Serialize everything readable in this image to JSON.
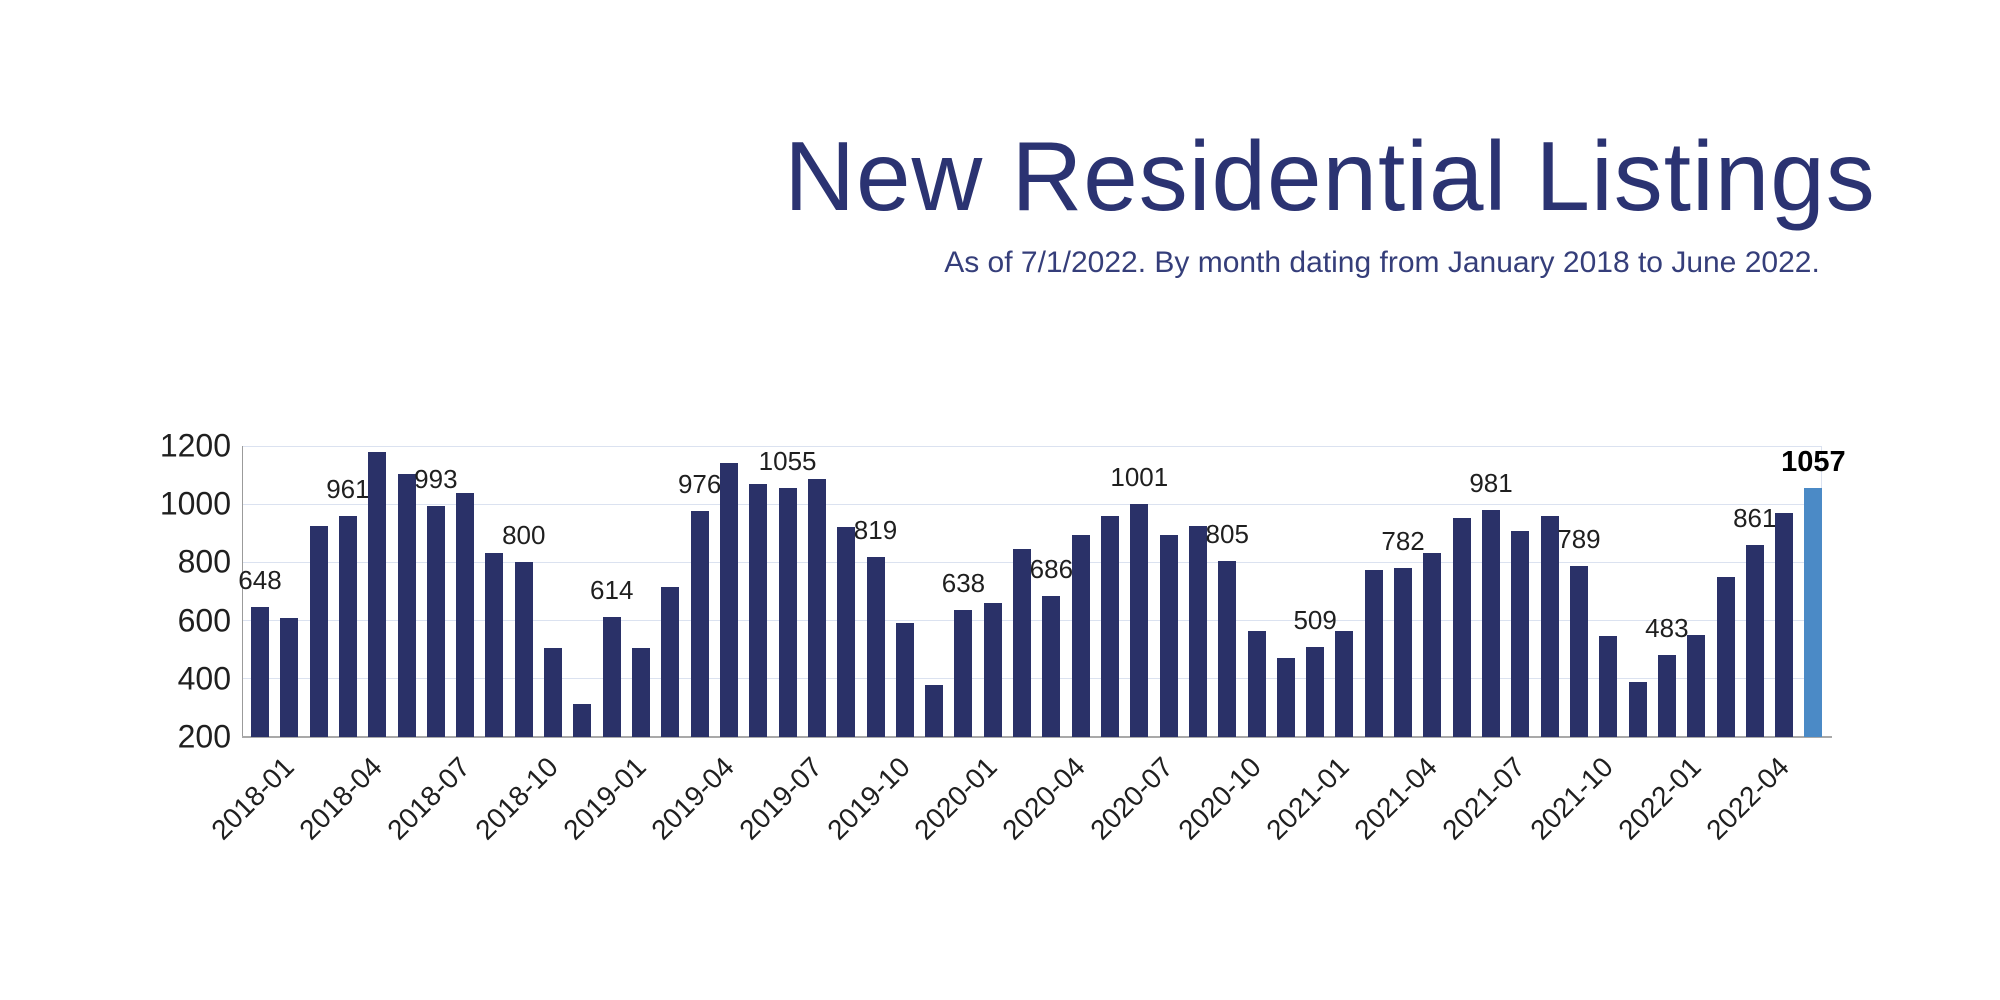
{
  "header": {
    "title": "New Residential Listings",
    "subtitle": "As of 7/1/2022. By month dating from January 2018 to June 2022."
  },
  "colors": {
    "title": "#2b3372",
    "subtitle": "#353e7a",
    "bar": "#2a3168",
    "bar_highlight": "#4b8ac6",
    "gridline": "#dbe2f0",
    "axis_line": "#9b9b9b",
    "baseline": "#a9a9a9",
    "tick_text": "#1f1f1f",
    "data_label_text": "#1f1f1f",
    "final_label_text": "#000000"
  },
  "chart_data": {
    "type": "bar",
    "title": "New Residential Listings",
    "subtitle": "As of 7/1/2022. By month dating from January 2018 to June 2022.",
    "x": [
      "2018-01",
      "2018-02",
      "2018-03",
      "2018-04",
      "2018-05",
      "2018-06",
      "2018-07",
      "2018-08",
      "2018-09",
      "2018-10",
      "2018-11",
      "2018-12",
      "2019-01",
      "2019-02",
      "2019-03",
      "2019-04",
      "2019-05",
      "2019-06",
      "2019-07",
      "2019-08",
      "2019-09",
      "2019-10",
      "2019-11",
      "2019-12",
      "2020-01",
      "2020-02",
      "2020-03",
      "2020-04",
      "2020-05",
      "2020-06",
      "2020-07",
      "2020-08",
      "2020-09",
      "2020-10",
      "2020-11",
      "2020-12",
      "2021-01",
      "2021-02",
      "2021-03",
      "2021-04",
      "2021-05",
      "2021-06",
      "2021-07",
      "2021-08",
      "2021-09",
      "2021-10",
      "2021-11",
      "2021-12",
      "2022-01",
      "2022-02",
      "2022-03",
      "2022-04",
      "2022-05",
      "2022-06"
    ],
    "values": [
      648,
      609,
      924,
      961,
      1178,
      1104,
      993,
      1038,
      834,
      800,
      507,
      315,
      614,
      505,
      717,
      976,
      1143,
      1070,
      1055,
      1088,
      923,
      819,
      593,
      378,
      638,
      660,
      846,
      686,
      895,
      958,
      1001,
      895,
      924,
      805,
      563,
      470,
      509,
      563,
      775,
      782,
      833,
      953,
      981,
      909,
      959,
      789,
      548,
      388,
      483,
      550,
      749,
      861,
      970,
      1057
    ],
    "shown_data_labels": [
      "648",
      "961",
      "993",
      "800",
      "614",
      "976",
      "1055",
      "819",
      "638",
      "686",
      "1001",
      "805",
      "509",
      "782",
      "981",
      "789",
      "483",
      "861",
      "1057"
    ],
    "label_every": 3,
    "label_last": true,
    "x_tick_every": 3,
    "x_tick_labels": [
      "2018-01",
      "2018-04",
      "2018-07",
      "2018-10",
      "2019-01",
      "2019-04",
      "2019-07",
      "2019-10",
      "2020-01",
      "2020-04",
      "2020-07",
      "2020-10",
      "2021-01",
      "2021-04",
      "2021-07",
      "2021-10",
      "2022-01",
      "2022-04"
    ],
    "ylim": [
      200,
      1200
    ],
    "y_ticks": [
      "200",
      "400",
      "600",
      "800",
      "1000",
      "1200"
    ],
    "grid": "horizontal",
    "legend": "none",
    "highlight_last_bar": true
  }
}
